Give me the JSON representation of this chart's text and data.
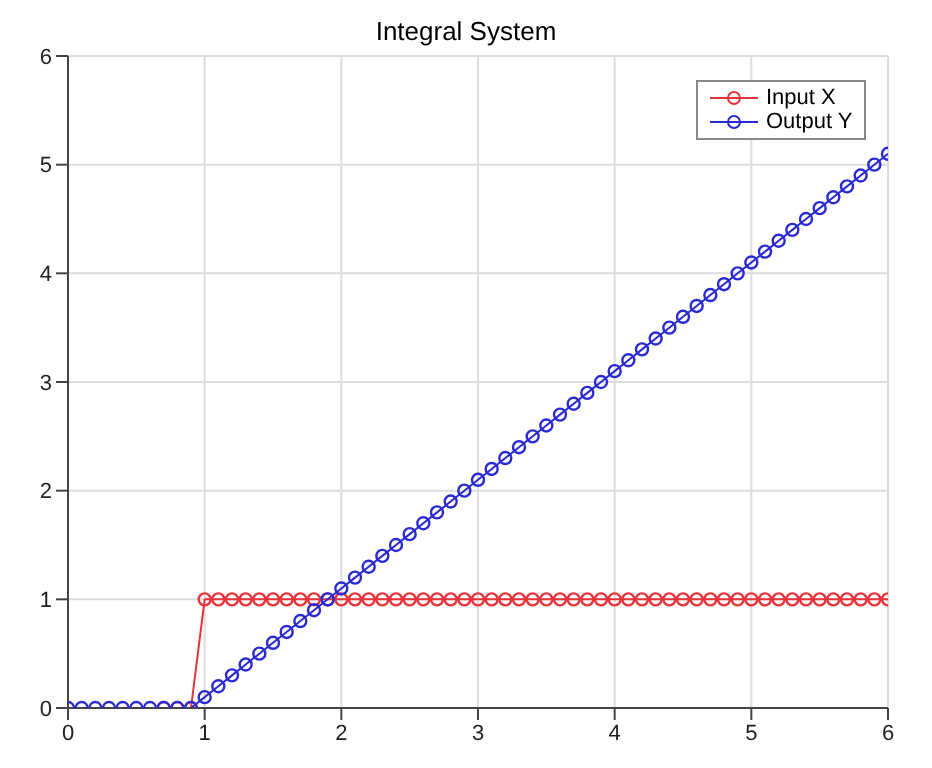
{
  "chart_data": {
    "type": "line",
    "title": "Integral System",
    "x": [
      0,
      0.1,
      0.2,
      0.3,
      0.4,
      0.5,
      0.6,
      0.7,
      0.8,
      0.9,
      1,
      1.1,
      1.2,
      1.3,
      1.4,
      1.5,
      1.6,
      1.7,
      1.8,
      1.9,
      2,
      2.1,
      2.2,
      2.3,
      2.4,
      2.5,
      2.6,
      2.7,
      2.8,
      2.9,
      3,
      3.1,
      3.2,
      3.3,
      3.4,
      3.5,
      3.6,
      3.7,
      3.8,
      3.9,
      4,
      4.1,
      4.2,
      4.3,
      4.4,
      4.5,
      4.6,
      4.7,
      4.8,
      4.9,
      5,
      5.1,
      5.2,
      5.3,
      5.4,
      5.5,
      5.6,
      5.7,
      5.8,
      5.9,
      6
    ],
    "series": [
      {
        "name": "Input X",
        "color": "#e8333a",
        "values": [
          null,
          null,
          null,
          null,
          null,
          null,
          null,
          0,
          0,
          0,
          1,
          1,
          1,
          1,
          1,
          1,
          1,
          1,
          1,
          1,
          1,
          1,
          1,
          1,
          1,
          1,
          1,
          1,
          1,
          1,
          1,
          1,
          1,
          1,
          1,
          1,
          1,
          1,
          1,
          1,
          1,
          1,
          1,
          1,
          1,
          1,
          1,
          1,
          1,
          1,
          1,
          1,
          1,
          1,
          1,
          1,
          1,
          1,
          1,
          1,
          1
        ]
      },
      {
        "name": "Output Y",
        "color": "#2a2ad0",
        "values": [
          0,
          0,
          0,
          0,
          0,
          0,
          0,
          0,
          0,
          0,
          0.1,
          0.2,
          0.3,
          0.4,
          0.5,
          0.6,
          0.7,
          0.8,
          0.9,
          1,
          1.1,
          1.2,
          1.3,
          1.4,
          1.5,
          1.6,
          1.7,
          1.8,
          1.9,
          2,
          2.1,
          2.2,
          2.3,
          2.4,
          2.5,
          2.6,
          2.7,
          2.8,
          2.9,
          3,
          3.1,
          3.2,
          3.3,
          3.4,
          3.5,
          3.6,
          3.7,
          3.8,
          3.9,
          4,
          4.1,
          4.2,
          4.3,
          4.4,
          4.5,
          4.6,
          4.7,
          4.8,
          4.9,
          5,
          5.1
        ]
      }
    ],
    "xlim": [
      0,
      6
    ],
    "xticks": [
      0,
      1,
      2,
      3,
      4,
      5,
      6
    ],
    "ylim": [
      0,
      6
    ],
    "yticks": [
      0,
      1,
      2,
      3,
      4,
      5,
      6
    ],
    "grid": true,
    "legend": "top right",
    "marker": "circle",
    "line_style": "solid"
  }
}
